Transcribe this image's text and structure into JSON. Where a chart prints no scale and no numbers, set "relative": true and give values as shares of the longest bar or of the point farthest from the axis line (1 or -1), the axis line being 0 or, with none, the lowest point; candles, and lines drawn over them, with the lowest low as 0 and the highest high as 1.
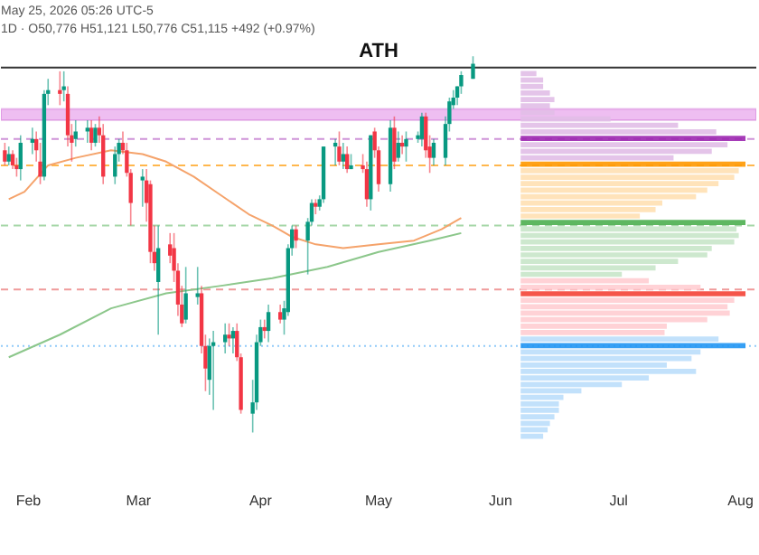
{
  "chart_data": [
    {
      "type": "candlestick",
      "relative": true,
      "annotations": [
        "May 25, 2026 05:26 UTC-5",
        "1D · O50,776 H51,121 L50,776 C51,115 +492 (+0.97%)"
      ],
      "xlim": [
        "2026-01-25",
        "2026-08-05"
      ],
      "xticks": [
        {
          "value": "2026-02-01",
          "label": "Feb"
        },
        {
          "value": "2026-03-01",
          "label": "Mar"
        },
        {
          "value": "2026-04-01",
          "label": "Apr"
        },
        {
          "value": "2026-05-01",
          "label": "May"
        },
        {
          "value": "2026-06-01",
          "label": "Jun"
        },
        {
          "value": "2026-07-01",
          "label": "Jul"
        },
        {
          "value": "2026-08-01",
          "label": "Aug"
        }
      ],
      "x": [
        "2026-01-26",
        "2026-01-27",
        "2026-01-28",
        "2026-01-29",
        "2026-01-30",
        "2026-02-02",
        "2026-02-03",
        "2026-02-04",
        "2026-02-05",
        "2026-02-06",
        "2026-02-09",
        "2026-02-10",
        "2026-02-11",
        "2026-02-12",
        "2026-02-13",
        "2026-02-16",
        "2026-02-17",
        "2026-02-18",
        "2026-02-19",
        "2026-02-20",
        "2026-02-23",
        "2026-02-24",
        "2026-02-25",
        "2026-02-26",
        "2026-02-27",
        "2026-03-02",
        "2026-03-03",
        "2026-03-04",
        "2026-03-05",
        "2026-03-06",
        "2026-03-09",
        "2026-03-10",
        "2026-03-11",
        "2026-03-12",
        "2026-03-13",
        "2026-03-16",
        "2026-03-17",
        "2026-03-18",
        "2026-03-19",
        "2026-03-20",
        "2026-03-23",
        "2026-03-24",
        "2026-03-25",
        "2026-03-26",
        "2026-03-27",
        "2026-03-30",
        "2026-03-31",
        "2026-04-01",
        "2026-04-02",
        "2026-04-03",
        "2026-04-06",
        "2026-04-07",
        "2026-04-08",
        "2026-04-09",
        "2026-04-10",
        "2026-04-13",
        "2026-04-14",
        "2026-04-15",
        "2026-04-16",
        "2026-04-17",
        "2026-04-20",
        "2026-04-21",
        "2026-04-22",
        "2026-04-23",
        "2026-04-24",
        "2026-04-27",
        "2026-04-28",
        "2026-04-29",
        "2026-04-30",
        "2026-05-01",
        "2026-05-04",
        "2026-05-05",
        "2026-05-06",
        "2026-05-07",
        "2026-05-08",
        "2026-05-11",
        "2026-05-12",
        "2026-05-13",
        "2026-05-14",
        "2026-05-15",
        "2026-05-18",
        "2026-05-19",
        "2026-05-20",
        "2026-05-21",
        "2026-05-22",
        "2026-05-25"
      ],
      "ohlc": [
        [
          0.75,
          0.77,
          0.71,
          0.72
        ],
        [
          0.72,
          0.76,
          0.71,
          0.74
        ],
        [
          0.74,
          0.75,
          0.7,
          0.71
        ],
        [
          0.71,
          0.73,
          0.68,
          0.7
        ],
        [
          0.7,
          0.79,
          0.67,
          0.77
        ],
        [
          0.77,
          0.81,
          0.74,
          0.78
        ],
        [
          0.78,
          0.8,
          0.72,
          0.75
        ],
        [
          0.72,
          0.77,
          0.66,
          0.68
        ],
        [
          0.68,
          0.91,
          0.67,
          0.9
        ],
        [
          0.9,
          0.94,
          0.87,
          0.91
        ],
        [
          0.91,
          0.96,
          0.87,
          0.9
        ],
        [
          0.91,
          0.96,
          0.88,
          0.92
        ],
        [
          0.9,
          0.92,
          0.76,
          0.79
        ],
        [
          0.79,
          0.82,
          0.72,
          0.77
        ],
        [
          0.78,
          0.83,
          0.76,
          0.8
        ],
        [
          0.8,
          0.83,
          0.77,
          0.81
        ],
        [
          0.81,
          0.83,
          0.75,
          0.77
        ],
        [
          0.77,
          0.82,
          0.76,
          0.81
        ],
        [
          0.81,
          0.84,
          0.77,
          0.79
        ],
        [
          0.79,
          0.82,
          0.66,
          0.68
        ],
        [
          0.68,
          0.76,
          0.66,
          0.74
        ],
        [
          0.74,
          0.78,
          0.72,
          0.77
        ],
        [
          0.77,
          0.8,
          0.74,
          0.75
        ],
        [
          0.75,
          0.77,
          0.68,
          0.69
        ],
        [
          0.69,
          0.7,
          0.55,
          0.61
        ],
        [
          0.67,
          0.7,
          0.6,
          0.68
        ],
        [
          0.67,
          0.7,
          0.56,
          0.61
        ],
        [
          0.66,
          0.67,
          0.45,
          0.48
        ],
        [
          0.48,
          0.55,
          0.43,
          0.45
        ],
        [
          0.4,
          0.55,
          0.26,
          0.49
        ],
        [
          0.5,
          0.53,
          0.45,
          0.47
        ],
        [
          0.49,
          0.53,
          0.4,
          0.43
        ],
        [
          0.43,
          0.45,
          0.31,
          0.34
        ],
        [
          0.34,
          0.39,
          0.28,
          0.29
        ],
        [
          0.3,
          0.44,
          0.29,
          0.37
        ],
        [
          0.36,
          0.44,
          0.34,
          0.37
        ],
        [
          0.37,
          0.39,
          0.21,
          0.23
        ],
        [
          0.23,
          0.26,
          0.11,
          0.17
        ],
        [
          0.14,
          0.25,
          0.1,
          0.23
        ],
        [
          0.23,
          0.27,
          0.06,
          0.24
        ],
        [
          0.24,
          0.29,
          0.21,
          0.26
        ],
        [
          0.26,
          0.29,
          0.23,
          0.25
        ],
        [
          0.25,
          0.28,
          0.21,
          0.27
        ],
        [
          0.27,
          0.29,
          0.19,
          0.2
        ],
        [
          0.2,
          0.21,
          0.05,
          0.06
        ],
        [
          0.05,
          0.14,
          0,
          0.08
        ],
        [
          0.08,
          0.26,
          0.06,
          0.24
        ],
        [
          0.24,
          0.3,
          0.23,
          0.28
        ],
        [
          0.28,
          0.3,
          0.25,
          0.27
        ],
        [
          0.27,
          0.34,
          0.24,
          0.32
        ],
        [
          0.32,
          0.34,
          0.29,
          0.3
        ],
        [
          0.3,
          0.35,
          0.26,
          0.33
        ],
        [
          0.32,
          0.5,
          0.31,
          0.49
        ],
        [
          0.49,
          0.55,
          0.47,
          0.54
        ],
        [
          0.54,
          0.55,
          0.49,
          0.51
        ],
        [
          0.51,
          0.57,
          0.42,
          0.56
        ],
        [
          0.56,
          0.62,
          0.55,
          0.61
        ],
        [
          0.61,
          0.62,
          0.58,
          0.6
        ],
        [
          0.6,
          0.63,
          0.59,
          0.62
        ],
        [
          0.62,
          0.76,
          0.61,
          0.76
        ],
        [
          0.76,
          0.78,
          0.71,
          0.77
        ],
        [
          0.76,
          0.8,
          0.71,
          0.72
        ],
        [
          0.72,
          0.77,
          0.7,
          0.74
        ],
        [
          0.74,
          0.76,
          0.69,
          0.7
        ],
        [
          0.7,
          0.74,
          0.7,
          0.71
        ],
        [
          0.71,
          0.74,
          0.69,
          0.7
        ],
        [
          0.7,
          0.72,
          0.6,
          0.62
        ],
        [
          0.62,
          0.79,
          0.59,
          0.79
        ],
        [
          0.8,
          0.81,
          0.73,
          0.75
        ],
        [
          0.75,
          0.76,
          0.64,
          0.66
        ],
        [
          0.66,
          0.83,
          0.64,
          0.81
        ],
        [
          0.81,
          0.84,
          0.7,
          0.72
        ],
        [
          0.73,
          0.8,
          0.72,
          0.77
        ],
        [
          0.77,
          0.79,
          0.74,
          0.76
        ],
        [
          0.76,
          0.8,
          0.72,
          0.78
        ],
        [
          0.78,
          0.8,
          0.77,
          0.79
        ],
        [
          0.78,
          0.85,
          0.76,
          0.84
        ],
        [
          0.84,
          0.85,
          0.73,
          0.75
        ],
        [
          0.76,
          0.79,
          0.69,
          0.73
        ],
        [
          0.73,
          0.78,
          0.71,
          0.77
        ],
        [
          0.73,
          0.84,
          0.71,
          0.82
        ],
        [
          0.82,
          0.89,
          0.8,
          0.88
        ],
        [
          0.87,
          0.91,
          0.86,
          0.89
        ],
        [
          0.89,
          0.92,
          0.87,
          0.92
        ],
        [
          0.92,
          0.96,
          0.9,
          0.95
        ],
        [
          0.94,
          1,
          0.94,
          0.98
        ]
      ],
      "series": [
        {
          "type": "line",
          "color": "#f5a36b",
          "x": [
            "2026-01-27",
            "2026-01-31",
            "2026-02-06",
            "2026-02-13",
            "2026-02-22",
            "2026-03-02",
            "2026-03-08",
            "2026-03-15",
            "2026-03-22",
            "2026-03-29",
            "2026-04-04",
            "2026-04-09",
            "2026-04-15",
            "2026-04-22",
            "2026-05-01",
            "2026-05-10",
            "2026-05-17",
            "2026-05-22"
          ],
          "values": [
            0.62,
            0.64,
            0.71,
            0.73,
            0.75,
            0.74,
            0.72,
            0.68,
            0.63,
            0.58,
            0.55,
            0.52,
            0.5,
            0.49,
            0.5,
            0.51,
            0.54,
            0.57
          ]
        },
        {
          "type": "line",
          "color": "#8cc78b",
          "x": [
            "2026-01-27",
            "2026-02-09",
            "2026-02-22",
            "2026-03-08",
            "2026-03-22",
            "2026-04-04",
            "2026-04-18",
            "2026-05-01",
            "2026-05-14",
            "2026-05-22"
          ],
          "values": [
            0.2,
            0.26,
            0.33,
            0.37,
            0.39,
            0.41,
            0.44,
            0.48,
            0.51,
            0.53
          ]
        }
      ],
      "ref_lines": [
        {
          "axis": "y",
          "value": 0.97,
          "label": "ATH",
          "color": "#333333",
          "line_style": "solid"
        },
        {
          "axis": "y",
          "value": 0.78,
          "color": "#ce93d8",
          "line_style": "dashed"
        },
        {
          "axis": "y",
          "value": 0.71,
          "color": "#ffb74d",
          "line_style": "dashed"
        },
        {
          "axis": "y",
          "value": 0.55,
          "color": "#a5d6a7",
          "line_style": "dashed"
        },
        {
          "axis": "y",
          "value": 0.38,
          "color": "#ef9a9a",
          "line_style": "dashed"
        },
        {
          "axis": "y",
          "value": 0.23,
          "color": "#90caf9",
          "line_style": "dotted"
        }
      ],
      "bands": [
        {
          "axis": "y",
          "from": 0.83,
          "to": 0.86,
          "color": "#e8a8ec"
        }
      ]
    },
    {
      "type": "bar",
      "orientation": "horizontal",
      "relative": true,
      "categories": [
        null,
        null,
        null,
        null,
        null,
        null,
        null,
        null,
        null,
        null,
        null,
        null,
        null,
        null,
        null,
        null,
        null,
        null,
        null,
        null,
        null,
        null,
        null,
        null,
        null,
        null,
        null,
        null,
        null,
        null,
        null,
        null,
        null,
        null,
        null,
        null,
        null,
        null,
        null,
        null,
        null,
        null,
        null,
        null,
        null,
        null,
        null,
        null,
        null,
        null,
        null,
        null,
        null,
        null,
        null,
        null,
        null
      ],
      "values": [
        0.07,
        0.1,
        0.1,
        0.13,
        0.15,
        0.13,
        0.15,
        0.4,
        0.7,
        0.87,
        1,
        0.92,
        0.85,
        0.68,
        1,
        0.97,
        0.95,
        0.88,
        0.83,
        0.78,
        0.63,
        0.6,
        0.53,
        1,
        0.96,
        0.97,
        0.95,
        0.85,
        0.83,
        0.7,
        0.6,
        0.45,
        0.57,
        0.8,
        1,
        0.95,
        0.92,
        0.93,
        0.83,
        0.65,
        0.64,
        0.88,
        1,
        0.8,
        0.76,
        0.65,
        0.78,
        0.57,
        0.45,
        0.27,
        0.19,
        0.17,
        0.17,
        0.15,
        0.13,
        0.12,
        0.1
      ],
      "colors": [
        "#e1bee7",
        "#e1bee7",
        "#e1bee7",
        "#e1bee7",
        "#e1bee7",
        "#e1bee7",
        "#e1bee7",
        "#e1bee7",
        "#e1bee7",
        "#e1bee7",
        "#9c27b0",
        "#e1bee7",
        "#e1bee7",
        "#e1bee7",
        "#ff9800",
        "#ffe0b2",
        "#ffe0b2",
        "#ffe0b2",
        "#ffe0b2",
        "#ffe0b2",
        "#ffe0b2",
        "#ffe0b2",
        "#ffe0b2",
        "#4caf50",
        "#c8e6c9",
        "#c8e6c9",
        "#c8e6c9",
        "#c8e6c9",
        "#c8e6c9",
        "#c8e6c9",
        "#c8e6c9",
        "#c8e6c9",
        "#ffcdd2",
        "#ffcdd2",
        "#f44336",
        "#ffcdd2",
        "#ffcdd2",
        "#ffcdd2",
        "#ffcdd2",
        "#ffcdd2",
        "#ffcdd2",
        "#bbdefb",
        "#2196f3",
        "#bbdefb",
        "#bbdefb",
        "#bbdefb",
        "#bbdefb",
        "#bbdefb",
        "#bbdefb",
        "#bbdefb",
        "#bbdefb",
        "#bbdefb",
        "#bbdefb",
        "#bbdefb",
        "#bbdefb",
        "#bbdefb",
        "#bbdefb"
      ]
    }
  ]
}
